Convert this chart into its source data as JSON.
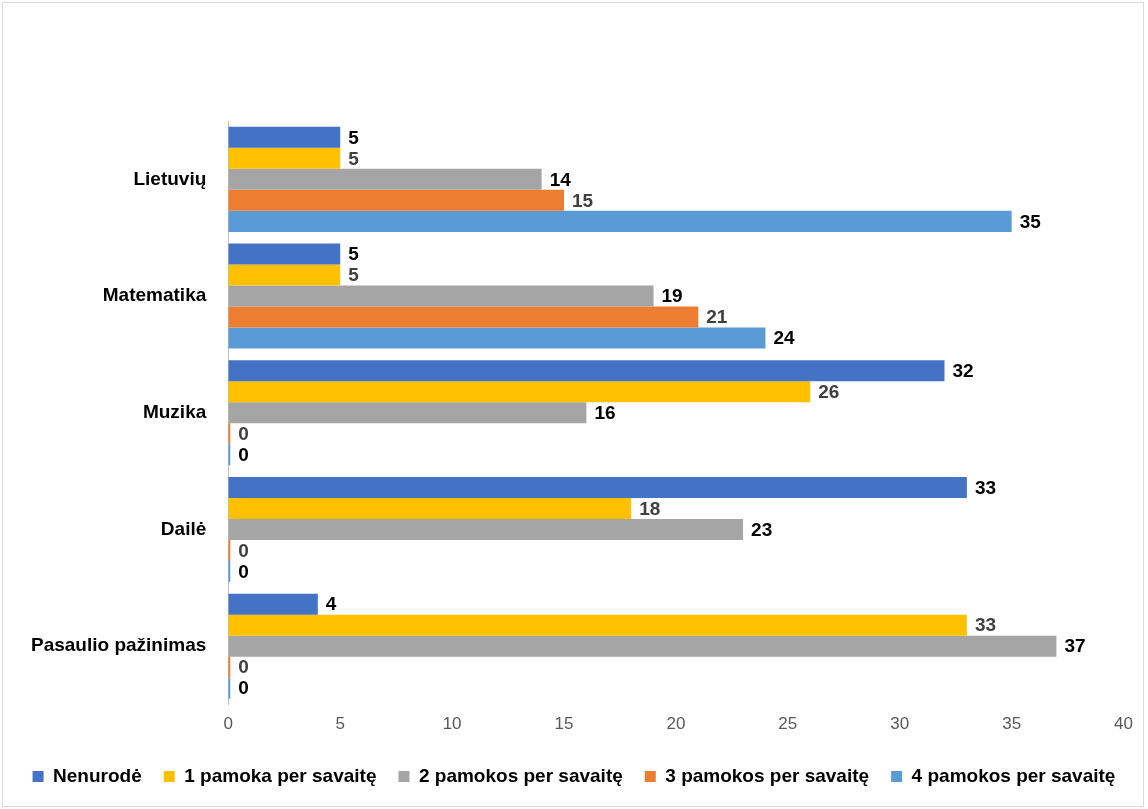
{
  "chart_data": {
    "type": "bar",
    "orientation": "horizontal",
    "categories": [
      "Lietuvių",
      "Matematika",
      "Muzika",
      "Dailė",
      "Pasaulio pažinimas"
    ],
    "series": [
      {
        "name": "Nenurodė",
        "color": "#4472c4",
        "values": [
          5,
          5,
          32,
          33,
          4
        ]
      },
      {
        "name": "1 pamoka per savaitę",
        "color": "#ffc000",
        "values": [
          5,
          5,
          26,
          18,
          33
        ]
      },
      {
        "name": "2 pamokos per savaitę",
        "color": "#a5a5a5",
        "values": [
          14,
          19,
          16,
          23,
          37
        ]
      },
      {
        "name": "3 pamokos per savaitę",
        "color": "#ed7d31",
        "values": [
          15,
          21,
          0,
          0,
          0
        ]
      },
      {
        "name": "4 pamokos per savaitę",
        "color": "#5b9bd5",
        "values": [
          35,
          24,
          0,
          0,
          0
        ]
      }
    ],
    "xlim": [
      0,
      40
    ],
    "xticks": [
      0,
      5,
      10,
      15,
      20,
      25,
      30,
      35,
      40
    ],
    "grid": false,
    "legend": "bottom",
    "data_labels": true
  }
}
